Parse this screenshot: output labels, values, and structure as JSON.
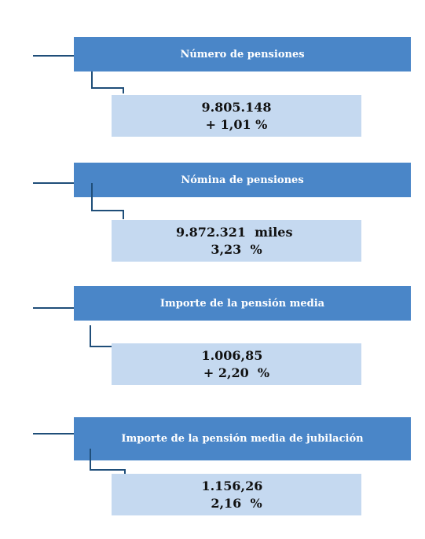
{
  "colors": {
    "header_bg": "#4a86c8",
    "value_bg": "#c5d9f0",
    "connector": "#1f4e79"
  },
  "blocks": [
    {
      "title": "Número de pensiones",
      "value": "9.805.148",
      "change": "+ 1,01 %"
    },
    {
      "title": "Nómina de pensiones",
      "value": "9.872.321  miles ",
      "change": "3,23  %"
    },
    {
      "title": "Importe de la pensión media",
      "value": "1.006,85  ",
      "change": "+ 2,20  %"
    },
    {
      "title": "Importe de la pensión media de jubilación",
      "value": "1.156,26  ",
      "change": "2,16  %"
    }
  ]
}
